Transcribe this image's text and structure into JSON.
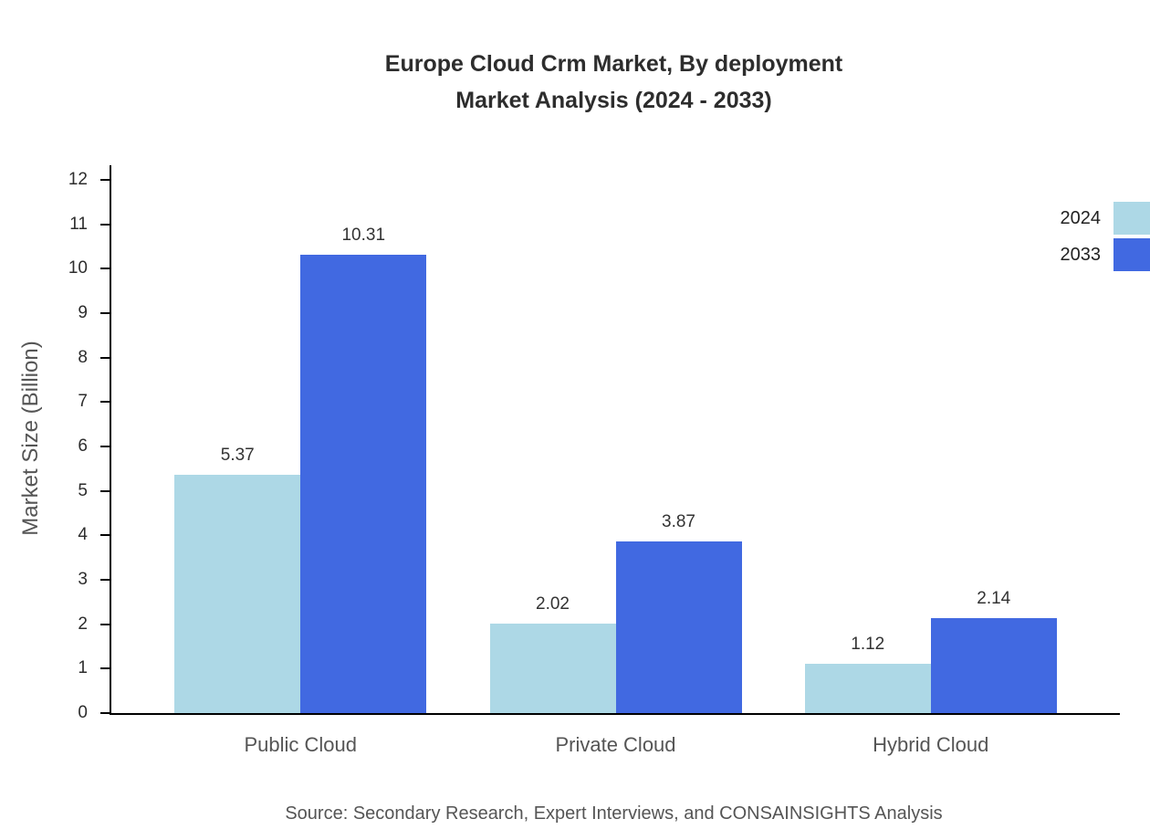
{
  "chart_data": {
    "type": "bar",
    "title": "Europe Cloud Crm Market, By deployment",
    "subtitle": "Market Analysis (2024 - 2033)",
    "categories": [
      "Public Cloud",
      "Private Cloud",
      "Hybrid Cloud"
    ],
    "series": [
      {
        "name": "2024",
        "color": "#add8e6",
        "values": [
          5.37,
          2.02,
          1.12
        ]
      },
      {
        "name": "2033",
        "color": "#4169e1",
        "values": [
          10.31,
          3.87,
          2.14
        ]
      }
    ],
    "xlabel": "",
    "ylabel": "Market Size (Billion)",
    "ylim": [
      0,
      12
    ],
    "ytick_step": 1,
    "grid": false,
    "legend_position": "top-right"
  },
  "source_note": "Source: Secondary Research, Expert Interviews, and CONSAINSIGHTS Analysis"
}
